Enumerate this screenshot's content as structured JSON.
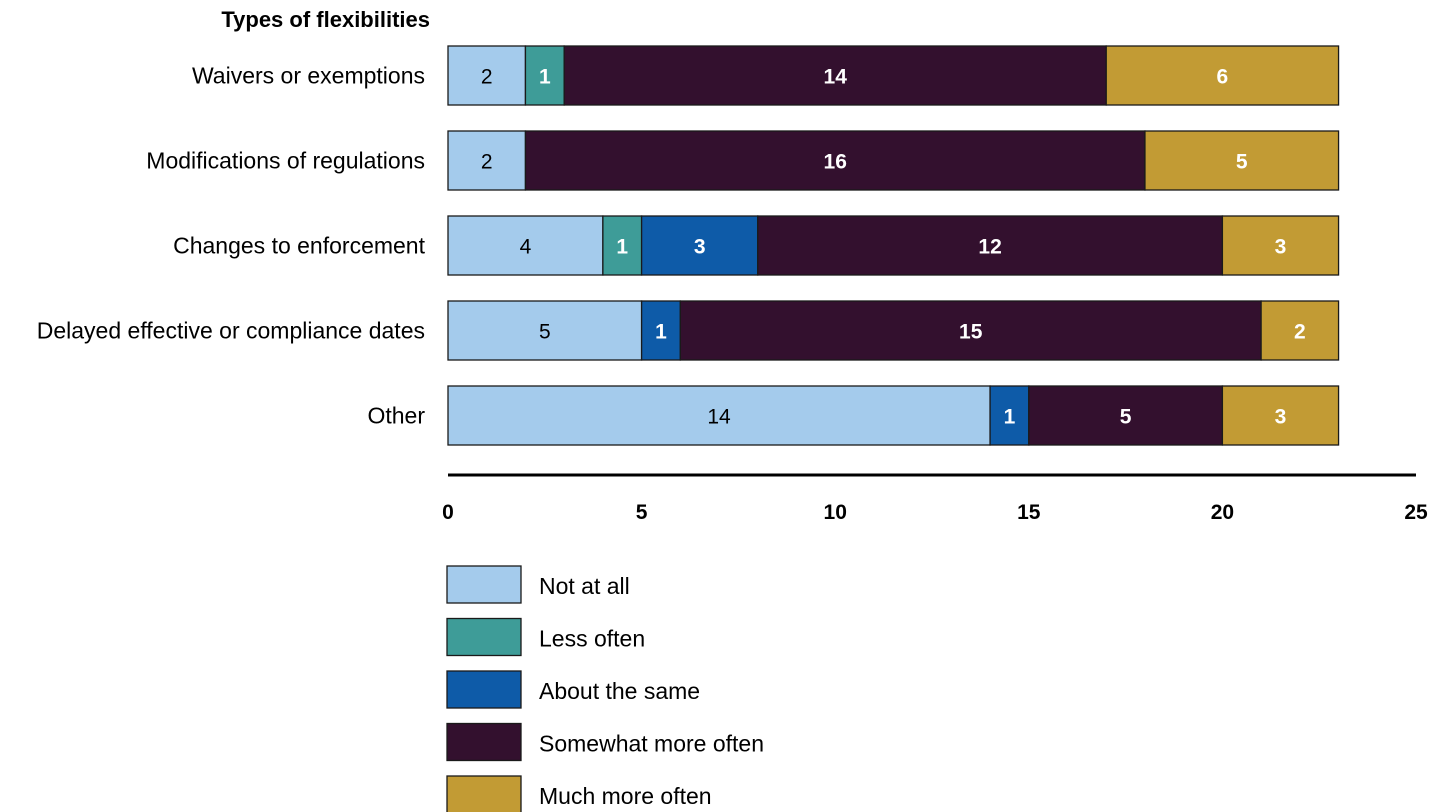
{
  "chart_data": {
    "type": "bar",
    "orientation": "horizontal",
    "stacked": true,
    "title": "",
    "ylabel": "Types of flexibilities",
    "xlabel": "",
    "categories": [
      "Waivers or exemptions",
      "Modifications of regulations",
      "Changes to enforcement",
      "Delayed effective or compliance dates",
      "Other"
    ],
    "series": [
      {
        "name": "Not at all",
        "color": "#a4cbec",
        "label_color": "#000000",
        "label_weight": "normal",
        "values": [
          2,
          2,
          4,
          5,
          14
        ]
      },
      {
        "name": "Less often",
        "color": "#3e9c98",
        "label_color": "#ffffff",
        "label_weight": "bold",
        "values": [
          1,
          0,
          1,
          0,
          0
        ]
      },
      {
        "name": "About the same",
        "color": "#0e5ba8",
        "label_color": "#ffffff",
        "label_weight": "bold",
        "values": [
          0,
          0,
          3,
          1,
          1
        ]
      },
      {
        "name": "Somewhat more often",
        "color": "#33102e",
        "label_color": "#ffffff",
        "label_weight": "bold",
        "values": [
          14,
          16,
          12,
          15,
          5
        ]
      },
      {
        "name": "Much more often",
        "color": "#c29b34",
        "label_color": "#ffffff",
        "label_weight": "bold",
        "values": [
          6,
          5,
          3,
          2,
          3
        ]
      }
    ],
    "xlim": [
      0,
      25
    ],
    "xticks": [
      0,
      5,
      10,
      15,
      20,
      25
    ],
    "grid": false,
    "legend_position": "bottom"
  }
}
